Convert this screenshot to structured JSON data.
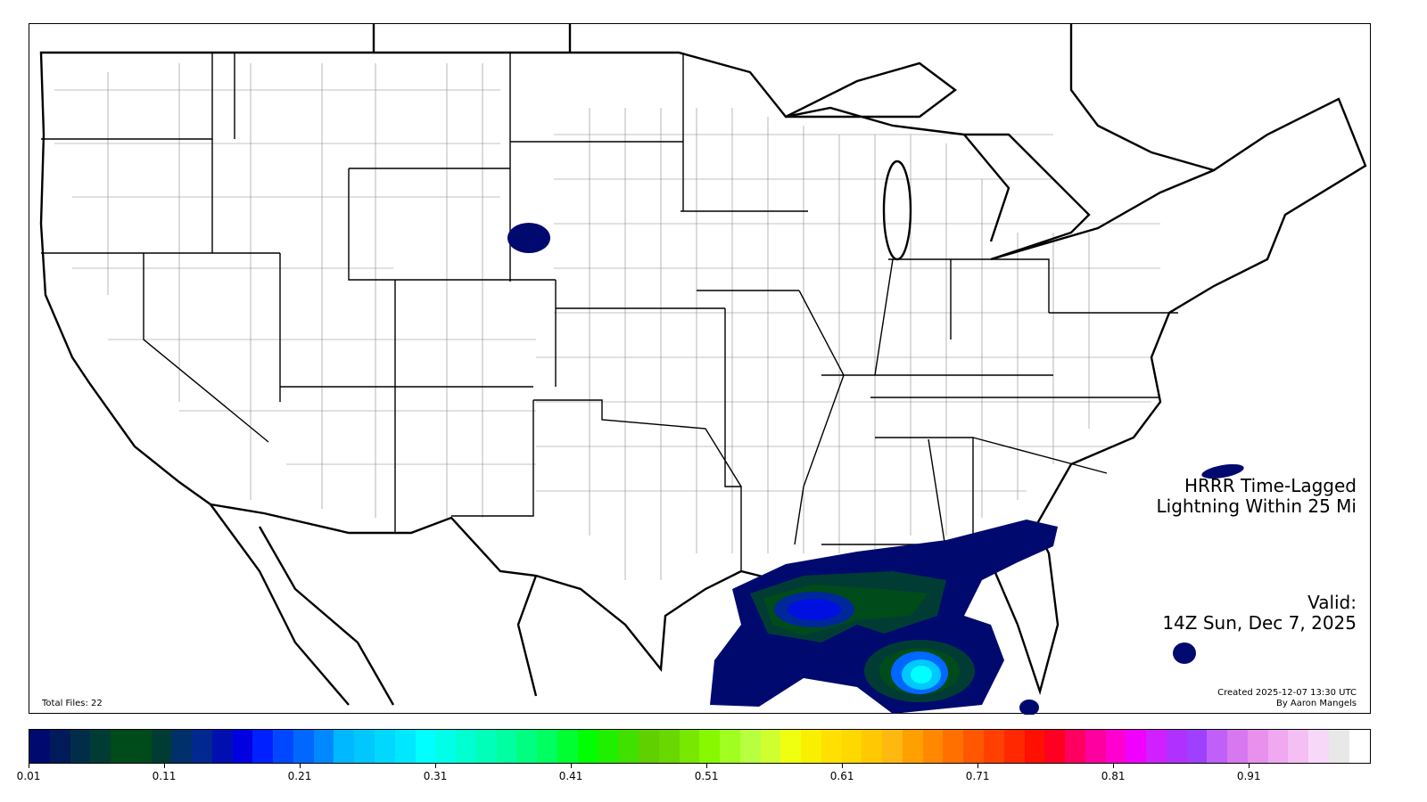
{
  "title": {
    "line1": "HRRR Time-Lagged",
    "line2": "Lightning Within 25 Mi"
  },
  "valid": {
    "label": "Valid:",
    "time": "14Z Sun, Dec 7, 2025"
  },
  "footer": {
    "total_files": "Total Files: 22",
    "created": "Created 2025-12-07 13:30 UTC",
    "author": "By Aaron Mangels"
  },
  "colorbar": {
    "range": [
      0.01,
      1.0
    ],
    "ticks": [
      "0.01",
      "0.11",
      "0.21",
      "0.31",
      "0.41",
      "0.51",
      "0.61",
      "0.71",
      "0.81",
      "0.91"
    ],
    "colors": [
      "#000a6e",
      "#001a5a",
      "#002e48",
      "#003c34",
      "#004b1a",
      "#004b1a",
      "#003c34",
      "#00306a",
      "#002890",
      "#0010b0",
      "#0000e0",
      "#0020ff",
      "#0048ff",
      "#0068ff",
      "#0088ff",
      "#00b8ff",
      "#00c8ff",
      "#00d8ff",
      "#00e8ff",
      "#00ffff",
      "#00ffe8",
      "#00ffd0",
      "#00ffb8",
      "#00ffa0",
      "#00ff80",
      "#00ff60",
      "#00ff30",
      "#00ff00",
      "#20f000",
      "#40e000",
      "#60d000",
      "#68d800",
      "#78e800",
      "#88f800",
      "#a0ff20",
      "#b8ff40",
      "#d0ff30",
      "#f0ff10",
      "#f8f000",
      "#ffe000",
      "#ffd800",
      "#ffc800",
      "#ffb810",
      "#ffa000",
      "#ff8800",
      "#ff7000",
      "#ff5800",
      "#ff4000",
      "#ff2800",
      "#ff1000",
      "#ff0020",
      "#ff0060",
      "#ff00a0",
      "#ff00d0",
      "#f000ff",
      "#d020ff",
      "#b030ff",
      "#a040ff",
      "#c060f8",
      "#d878f0",
      "#e890ec",
      "#f0a8f0",
      "#f4c0f4",
      "#f8d8f8",
      "#e8e8e8",
      "#ffffff"
    ]
  },
  "colors": {
    "lightning_low": "#000a6e",
    "lightning_mid": "#004b1a",
    "lightning_blue": "#0010e0",
    "lightning_cyan": "#00e8ff"
  }
}
